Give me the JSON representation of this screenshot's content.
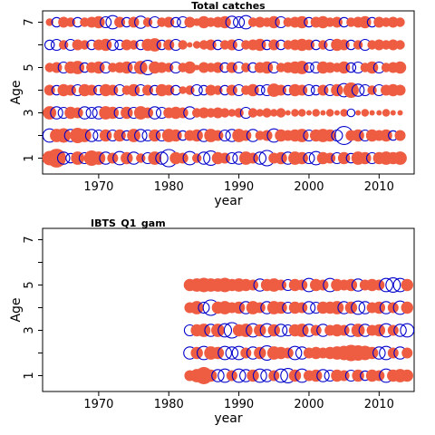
{
  "chart_data": [
    {
      "type": "scatter",
      "title": "Total catches",
      "xlabel": "year",
      "ylabel": "Age",
      "xlim": [
        1962,
        2015
      ],
      "ylim": [
        0.3,
        7.5
      ],
      "x_ticks": [
        1970,
        1980,
        1990,
        2000,
        2010
      ],
      "y_ticks": [
        1,
        2,
        3,
        4,
        5,
        6,
        7
      ],
      "y_tick_labels": [
        "1",
        "",
        "3",
        "",
        "5",
        "",
        "7"
      ],
      "encoding": "bubble area ~ |residual|; filled red = positive residual, open blue circle = negative residual",
      "colors": {
        "positive": "#EE5C42",
        "negative": "#0000CC"
      },
      "ages": [
        1,
        2,
        3,
        4,
        5,
        6,
        7
      ],
      "years": [
        1963,
        1964,
        1965,
        1966,
        1967,
        1968,
        1969,
        1970,
        1971,
        1972,
        1973,
        1974,
        1975,
        1976,
        1977,
        1978,
        1979,
        1980,
        1981,
        1982,
        1983,
        1984,
        1985,
        1986,
        1987,
        1988,
        1989,
        1990,
        1991,
        1992,
        1993,
        1994,
        1995,
        1996,
        1997,
        1998,
        1999,
        2000,
        2001,
        2002,
        2003,
        2004,
        2005,
        2006,
        2007,
        2008,
        2009,
        2010,
        2011,
        2012,
        2013
      ],
      "residuals": [
        [
          0.7,
          1.2,
          -0.5,
          -0.3,
          0.6,
          -0.4,
          0.8,
          0.6,
          -0.5,
          0.4,
          -0.6,
          0.5,
          -0.5,
          0.3,
          -0.4,
          0.6,
          -0.5,
          -1.0,
          0.5,
          0.4,
          -0.6,
          0.3,
          -0.5,
          -0.7,
          0.5,
          0.4,
          -0.4,
          -0.5,
          0.6,
          0.4,
          -0.5,
          -0.8,
          0.4,
          0.5,
          -0.5,
          0.6,
          0.5,
          -0.4,
          -0.6,
          0.5,
          0.4,
          -0.4,
          0.5,
          -0.3,
          0.6,
          0.5,
          -0.4,
          0.5,
          0.6,
          0.5,
          0.6
        ],
        [
          -0.6,
          0.6,
          0.7,
          -0.5,
          0.8,
          0.6,
          -0.5,
          -0.4,
          0.5,
          -0.4,
          0.5,
          -0.3,
          0.6,
          -0.5,
          -0.4,
          0.5,
          -0.4,
          0.6,
          0.5,
          -0.3,
          0.4,
          0.5,
          -0.5,
          0.6,
          0.4,
          -0.4,
          -0.5,
          0.6,
          0.4,
          -0.5,
          0.3,
          0.4,
          -0.6,
          0.5,
          0.4,
          0.5,
          0.6,
          -0.4,
          0.5,
          0.6,
          0.5,
          -0.4,
          -1.1,
          0.4,
          0.5,
          -0.4,
          0.5,
          0.4,
          0.5,
          -0.3,
          0.4
        ],
        [
          0.6,
          -0.5,
          -0.4,
          0.5,
          0.4,
          -0.5,
          -0.4,
          -0.5,
          0.6,
          0.5,
          -0.4,
          0.5,
          -0.4,
          0.6,
          0.4,
          -0.5,
          -0.4,
          0.4,
          0.5,
          0.4,
          -0.5,
          0.3,
          0.4,
          0.3,
          0.4,
          0.3,
          0.2,
          0.3,
          -0.4,
          0.3,
          0.2,
          0.3,
          0.2,
          0.3,
          0.1,
          0.2,
          0.2,
          0.1,
          0.2,
          0.1,
          0.2,
          0.1,
          0.2,
          -0.2,
          0.1,
          0.2,
          0.1,
          0.1,
          0.2,
          0.1,
          0.1
        ],
        [
          0.4,
          -0.3,
          0.5,
          0.4,
          -0.4,
          0.5,
          0.4,
          -0.3,
          0.5,
          0.4,
          -0.4,
          0.3,
          0.5,
          -0.4,
          0.4,
          -0.3,
          0.5,
          0.4,
          -0.3,
          0.2,
          0.3,
          -0.4,
          -0.3,
          0.4,
          0.3,
          -0.3,
          0.4,
          -0.4,
          0.3,
          0.5,
          -0.3,
          -0.4,
          0.6,
          0.4,
          -0.3,
          0.5,
          0.4,
          -0.4,
          -0.3,
          0.4,
          -0.4,
          0.5,
          -0.6,
          0.8,
          -0.5,
          -0.4,
          0.3,
          -0.4,
          0.4,
          0.5,
          0.4
        ],
        [
          0.3,
          0.4,
          -0.4,
          0.5,
          0.6,
          -0.3,
          0.4,
          0.5,
          -0.4,
          0.3,
          0.4,
          0.5,
          -0.4,
          0.6,
          -0.7,
          0.5,
          0.4,
          0.3,
          -0.4,
          0.3,
          0.5,
          0.1,
          0.4,
          0.3,
          0.4,
          -0.3,
          0.4,
          -0.4,
          0.3,
          -0.3,
          0.4,
          0.5,
          -0.4,
          0.3,
          0.4,
          0.5,
          0.6,
          -0.3,
          -0.4,
          0.5,
          0.4,
          0.3,
          0.5,
          -0.3,
          -0.4,
          0.3,
          0.5,
          -0.4,
          0.3,
          0.4,
          0.5
        ],
        [
          -0.3,
          -0.4,
          0.3,
          -0.4,
          0.4,
          0.3,
          -0.3,
          0.4,
          0.5,
          -0.4,
          -0.3,
          0.4,
          0.3,
          -0.3,
          0.5,
          0.6,
          -0.3,
          0.4,
          -0.4,
          0.3,
          0.1,
          0.2,
          0.3,
          0.4,
          -0.3,
          0.3,
          0.4,
          -0.4,
          0.3,
          0.4,
          0.5,
          -0.3,
          0.4,
          -0.3,
          0.3,
          0.4,
          0.5,
          0.4,
          -0.3,
          0.3,
          -0.4,
          0.5,
          0.4,
          -0.3,
          0.3,
          -0.4,
          0.3,
          0.4,
          0.3,
          0.4,
          0.3
        ],
        [
          0.2,
          -0.3,
          0.4,
          0.3,
          -0.3,
          0.3,
          0.4,
          0.5,
          -0.4,
          -0.6,
          0.4,
          -0.3,
          0.4,
          -0.5,
          0.3,
          -0.4,
          0.3,
          0.4,
          -0.3,
          -0.4,
          0.4,
          0.2,
          0.5,
          0.3,
          0.4,
          0.5,
          -0.5,
          -0.4,
          -0.6,
          0.3,
          0.4,
          0.3,
          0.5,
          -0.4,
          0.3,
          0.4,
          0.5,
          -0.3,
          0.4,
          0.5,
          0.3,
          0.4,
          -0.3,
          0.3,
          0.4,
          0.5,
          -0.3,
          0.4,
          0.3,
          0.4,
          0.3
        ]
      ]
    },
    {
      "type": "scatter",
      "title": "IBTS_Q1_gam",
      "xlabel": "year",
      "ylabel": "Age",
      "xlim": [
        1962,
        2015
      ],
      "ylim": [
        0.3,
        7.5
      ],
      "x_ticks": [
        1970,
        1980,
        1990,
        2000,
        2010
      ],
      "y_ticks": [
        1,
        2,
        3,
        4,
        5,
        6,
        7
      ],
      "y_tick_labels": [
        "1",
        "",
        "3",
        "",
        "5",
        "",
        "7"
      ],
      "encoding": "bubble area ~ |residual|; filled red = positive residual, open blue circle = negative residual",
      "colors": {
        "positive": "#EE5C42",
        "negative": "#0000CC"
      },
      "ages": [
        1,
        2,
        3,
        4,
        5
      ],
      "years": [
        1983,
        1984,
        1985,
        1986,
        1987,
        1988,
        1989,
        1990,
        1991,
        1992,
        1993,
        1994,
        1995,
        1996,
        1997,
        1998,
        1999,
        2000,
        2001,
        2002,
        2003,
        2004,
        2005,
        2006,
        2007,
        2008,
        2009,
        2010,
        2011,
        2012,
        2013,
        2014
      ],
      "residuals": [
        [
          0.4,
          0.6,
          1.0,
          0.5,
          -0.5,
          -0.6,
          0.4,
          -0.6,
          -0.5,
          0.5,
          -0.6,
          -0.5,
          0.4,
          -0.6,
          -0.7,
          0.5,
          -0.6,
          0.4,
          0.5,
          -0.5,
          -0.4,
          0.5,
          0.4,
          -0.4,
          0.5,
          -0.3,
          0.5,
          0.4,
          -0.6,
          0.5,
          0.6,
          0.5
        ],
        [
          -0.5,
          0.5,
          -0.6,
          0.6,
          0.5,
          -0.6,
          -0.5,
          -0.6,
          0.4,
          -0.5,
          0.5,
          -0.7,
          0.6,
          0.5,
          0.4,
          -0.6,
          -0.5,
          0.4,
          0.5,
          0.4,
          0.5,
          0.6,
          0.7,
          0.9,
          0.8,
          0.7,
          0.5,
          -0.5,
          -0.6,
          0.4,
          -0.5,
          0.4
        ],
        [
          -0.4,
          0.5,
          0.6,
          -0.5,
          0.6,
          -0.6,
          -0.8,
          0.5,
          0.6,
          -0.6,
          0.5,
          -0.6,
          0.5,
          -0.5,
          -0.4,
          0.5,
          0.6,
          -0.5,
          0.4,
          -0.5,
          0.4,
          0.5,
          0.4,
          -0.5,
          0.6,
          -0.5,
          0.4,
          0.5,
          -0.6,
          0.4,
          -0.5,
          -0.6
        ],
        [
          0.4,
          0.6,
          -0.4,
          -0.8,
          0.5,
          0.6,
          0.4,
          0.5,
          -0.5,
          0.6,
          0.4,
          -0.5,
          0.6,
          0.5,
          -0.4,
          0.5,
          0.4,
          -0.5,
          -0.4,
          0.5,
          0.5,
          0.6,
          -0.5,
          0.5,
          -0.6,
          -0.5,
          0.4,
          0.5,
          -0.5,
          0.4,
          -0.6,
          0.5
        ],
        [
          0.5,
          0.6,
          0.7,
          0.6,
          0.6,
          0.7,
          0.5,
          0.6,
          0.5,
          0.4,
          -0.5,
          0.5,
          0.6,
          0.4,
          -0.4,
          0.5,
          0.4,
          -0.6,
          0.5,
          0.4,
          -0.6,
          0.5,
          0.4,
          0.5,
          -0.5,
          0.4,
          0.5,
          0.4,
          -0.6,
          -0.7,
          -0.6,
          0.5
        ],
        [],
        []
      ]
    }
  ]
}
